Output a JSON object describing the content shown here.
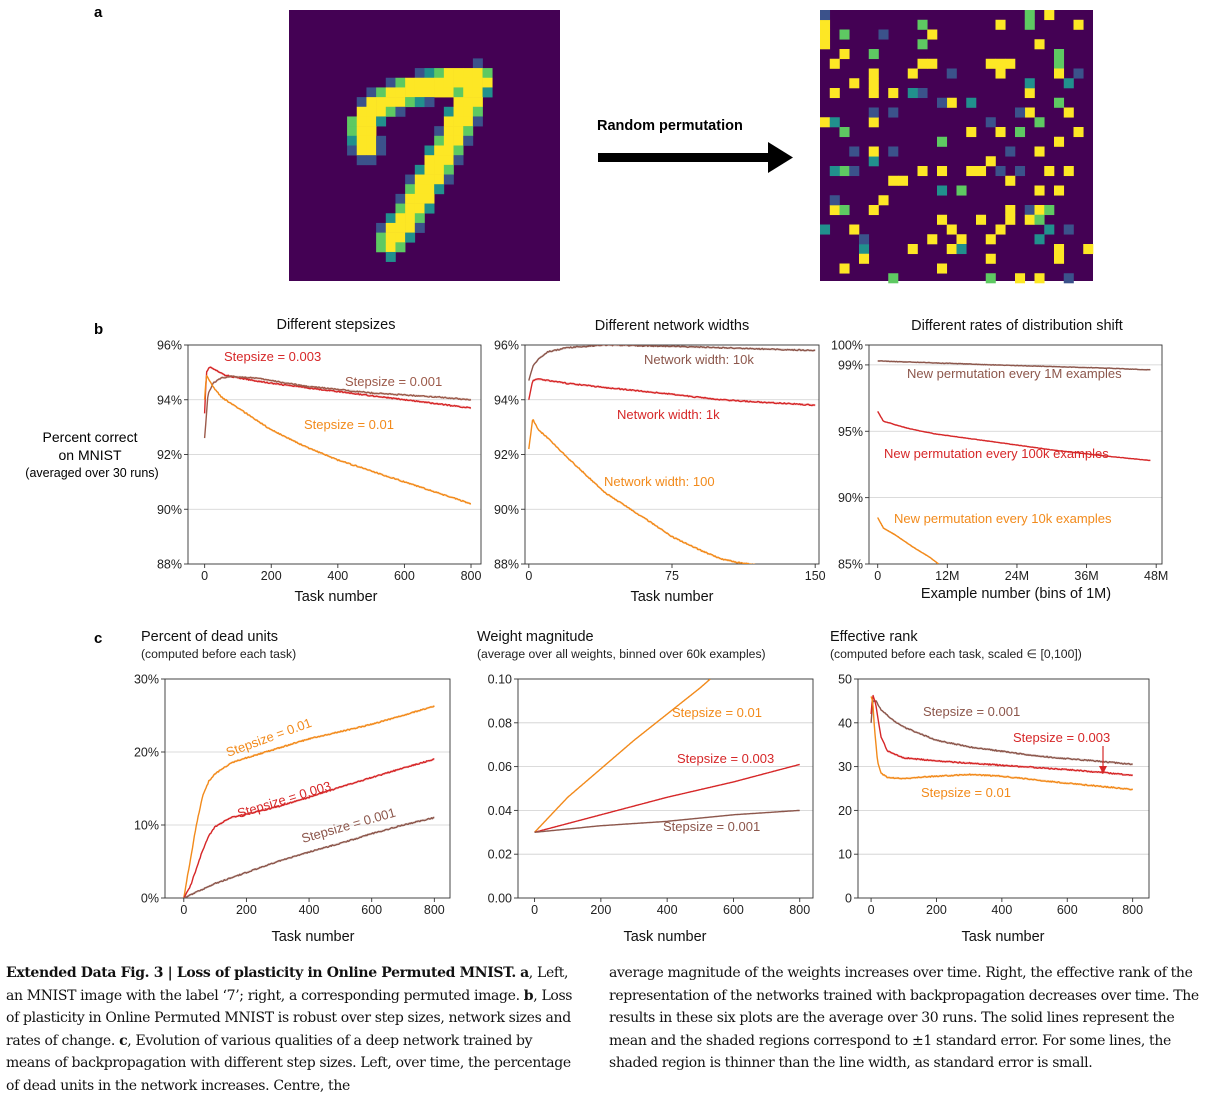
{
  "panel_labels": {
    "a": "a",
    "b": "b",
    "c": "c"
  },
  "panel_a": {
    "arrow_label": "Random permutation",
    "left_image": "mnist-digit-7",
    "right_image": "permuted-mnist-digit-7",
    "colors": {
      "background": "#440154",
      "low": "#3b528b",
      "mid": "#21908d",
      "high": "#5ec962",
      "top": "#fde725"
    }
  },
  "panel_b": {
    "y_label_lines": [
      "Percent correct",
      "on MNIST",
      "(averaged over 30 runs)"
    ]
  },
  "panel_c": {},
  "caption": {
    "heading": "Extended Data Fig. 3 | Loss of plasticity in Online Permuted MNIST.",
    "left_text": [
      {
        "bold": "a",
        "text": ", Left, an MNIST image with the label ‘7’; right, a corresponding permuted image. "
      },
      {
        "bold": "b",
        "text": ", Loss of plasticity in Online Permuted MNIST is robust over step sizes, network sizes and rates of change. "
      },
      {
        "bold": "c",
        "text": ", Evolution of various qualities of a deep network trained by means of backpropagation with different step sizes. Left, over time, the percentage of dead units in the network increases. Centre, the"
      }
    ],
    "right_text": "average magnitude of the weights increases over time. Right, the effective rank of the representation of the networks trained with backpropagation decreases over time. The results in these six plots are the average over 30 runs. The solid lines represent the mean and the shaded regions correspond to ±1 standard error. For some lines, the shaded region is thinner than the line width, as standard error is small."
  },
  "chart_data": [
    {
      "id": "b1",
      "type": "line",
      "title": "Different stepsizes",
      "xlabel": "Task number",
      "ylabel": "",
      "xlim": [
        -50,
        830
      ],
      "ylim": [
        88,
        96
      ],
      "xticks": [
        0,
        200,
        400,
        600,
        800
      ],
      "xtick_labels": [
        "0",
        "200",
        "400",
        "600",
        "800"
      ],
      "yticks": [
        88,
        90,
        92,
        94,
        96
      ],
      "ytick_labels": [
        "88%",
        "90%",
        "92%",
        "94%",
        "96%"
      ],
      "grid": "horizontal",
      "series": [
        {
          "name": "Stepsize = 0.003",
          "color": "#d62728",
          "x": [
            0,
            5,
            15,
            30,
            60,
            100,
            200,
            300,
            400,
            500,
            600,
            700,
            800
          ],
          "y": [
            93.5,
            95.0,
            95.2,
            95.1,
            94.9,
            94.8,
            94.6,
            94.45,
            94.3,
            94.15,
            94.0,
            93.85,
            93.7
          ]
        },
        {
          "name": "Stepsize = 0.001",
          "color": "#9c5a4a",
          "x": [
            0,
            10,
            25,
            50,
            80,
            150,
            300,
            500,
            700,
            800
          ],
          "y": [
            92.6,
            94.2,
            94.6,
            94.8,
            94.85,
            94.8,
            94.5,
            94.25,
            94.1,
            94.0
          ]
        },
        {
          "name": "Stepsize = 0.01",
          "color": "#f28a1b",
          "x": [
            0,
            5,
            15,
            30,
            50,
            100,
            200,
            300,
            400,
            500,
            600,
            700,
            800
          ],
          "y": [
            94.0,
            94.9,
            94.7,
            94.4,
            94.1,
            93.7,
            92.9,
            92.3,
            91.8,
            91.4,
            91.0,
            90.6,
            90.2
          ]
        }
      ],
      "annotations": [
        "Stepsize = 0.003",
        "Stepsize = 0.001",
        "Stepsize = 0.01"
      ]
    },
    {
      "id": "b2",
      "type": "line",
      "title": "Different network widths",
      "xlabel": "Task number",
      "ylabel": "",
      "xlim": [
        -2,
        152
      ],
      "ylim": [
        88,
        96
      ],
      "xticks": [
        0,
        75,
        150
      ],
      "xtick_labels": [
        "0",
        "75",
        "150"
      ],
      "yticks": [
        88,
        90,
        92,
        94,
        96
      ],
      "ytick_labels": [
        "88%",
        "90%",
        "92%",
        "94%",
        "96%"
      ],
      "grid": "horizontal",
      "series": [
        {
          "name": "Network width: 10k",
          "color": "#8c564b",
          "x": [
            0,
            2,
            5,
            10,
            20,
            40,
            75,
            100,
            150
          ],
          "y": [
            94.7,
            95.2,
            95.5,
            95.75,
            95.9,
            96.0,
            95.95,
            95.9,
            95.8
          ]
        },
        {
          "name": "Network width: 1k",
          "color": "#d62728",
          "x": [
            0,
            2,
            5,
            10,
            20,
            40,
            75,
            100,
            150
          ],
          "y": [
            94.0,
            94.7,
            94.75,
            94.7,
            94.6,
            94.45,
            94.2,
            94.0,
            93.8
          ]
        },
        {
          "name": "Network width: 100",
          "color": "#f28a1b",
          "x": [
            0,
            2,
            5,
            10,
            20,
            40,
            60,
            75,
            90,
            100,
            110,
            125
          ],
          "y": [
            92.2,
            93.3,
            92.9,
            92.6,
            91.9,
            90.6,
            89.7,
            89.0,
            88.5,
            88.2,
            88.05,
            87.9
          ]
        }
      ],
      "annotations": [
        "Network width: 10k",
        "Network width: 1k",
        "Network width: 100"
      ]
    },
    {
      "id": "b3",
      "type": "line",
      "title": "Different rates of distribution shift",
      "xlabel": "Example number (bins of 1M)",
      "ylabel": "",
      "xlim": [
        -1.5,
        49
      ],
      "ylim": [
        85,
        100
      ],
      "yscale": "compressed",
      "xticks": [
        0,
        12,
        24,
        36,
        48
      ],
      "xtick_labels": [
        "0",
        "12M",
        "24M",
        "36M",
        "48M"
      ],
      "yticks": [
        85,
        90,
        95,
        99,
        100
      ],
      "ytick_labels": [
        "85%",
        "90%",
        "95%",
        "99%",
        "100%"
      ],
      "grid": "horizontal",
      "series": [
        {
          "name": "New permutation every 1M examples",
          "color": "#8c564b",
          "x": [
            0,
            10,
            20,
            30,
            40,
            47
          ],
          "y": [
            99.2,
            99.1,
            99.0,
            98.9,
            98.8,
            98.7
          ]
        },
        {
          "name": "New permutation every 100k examples",
          "color": "#d62728",
          "x": [
            0,
            1,
            5,
            10,
            20,
            30,
            40,
            47
          ],
          "y": [
            96.2,
            95.6,
            95.2,
            94.8,
            94.2,
            93.6,
            93.1,
            92.8
          ]
        },
        {
          "name": "New permutation every 10k examples",
          "color": "#f28a1b",
          "x": [
            0,
            1,
            3,
            6,
            9,
            10.5
          ],
          "y": [
            88.5,
            87.7,
            87.2,
            86.3,
            85.5,
            85.0
          ]
        }
      ],
      "annotations": [
        "New permutation every 1M examples",
        "New permutation every 100k examples",
        "New permutation every 10k examples"
      ]
    },
    {
      "id": "c1",
      "type": "line",
      "title": "Percent of dead units",
      "subtitle": "(computed before each task)",
      "xlabel": "Task number",
      "ylabel": "",
      "xlim": [
        -60,
        850
      ],
      "ylim": [
        0,
        30
      ],
      "xticks": [
        0,
        200,
        400,
        600,
        800
      ],
      "xtick_labels": [
        "0",
        "200",
        "400",
        "600",
        "800"
      ],
      "yticks": [
        0,
        10,
        20,
        30
      ],
      "ytick_labels": [
        "0%",
        "10%",
        "20%",
        "30%"
      ],
      "grid": "horizontal",
      "series": [
        {
          "name": "Stepsize = 0.01",
          "color": "#f28a1b",
          "x": [
            0,
            20,
            40,
            60,
            80,
            100,
            150,
            200,
            300,
            400,
            500,
            600,
            700,
            800
          ],
          "y": [
            0,
            5,
            10,
            14,
            16,
            17,
            18.5,
            19.2,
            20.5,
            21.8,
            22.8,
            23.8,
            25.0,
            26.3
          ]
        },
        {
          "name": "Stepsize = 0.003",
          "color": "#d62728",
          "x": [
            0,
            20,
            40,
            60,
            80,
            100,
            150,
            200,
            300,
            400,
            500,
            600,
            700,
            800
          ],
          "y": [
            0,
            1.5,
            4,
            6.5,
            8.5,
            9.8,
            11.0,
            11.5,
            12.5,
            13.8,
            15.2,
            16.5,
            17.8,
            19.0
          ]
        },
        {
          "name": "Stepsize = 0.001",
          "color": "#8c564b",
          "x": [
            0,
            50,
            100,
            200,
            300,
            400,
            500,
            600,
            700,
            800
          ],
          "y": [
            0,
            1.0,
            2.0,
            3.5,
            5.0,
            6.3,
            7.5,
            8.8,
            10.0,
            11.0
          ]
        }
      ],
      "annotations": [
        "Stepsize = 0.01",
        "Stepsize = 0.003",
        "Stepsize = 0.001"
      ]
    },
    {
      "id": "c2",
      "type": "line",
      "title": "Weight magnitude",
      "subtitle": "(average over all weights, binned over 60k examples)",
      "xlabel": "Task number",
      "ylabel": "",
      "xlim": [
        -50,
        840
      ],
      "ylim": [
        0.0,
        0.1
      ],
      "xticks": [
        0,
        200,
        400,
        600,
        800
      ],
      "xtick_labels": [
        "0",
        "200",
        "400",
        "600",
        "800"
      ],
      "yticks": [
        0.0,
        0.02,
        0.04,
        0.06,
        0.08,
        0.1
      ],
      "ytick_labels": [
        "0.00",
        "0.02",
        "0.04",
        "0.06",
        "0.08",
        "0.10"
      ],
      "grid": "horizontal",
      "series": [
        {
          "name": "Stepsize = 0.01",
          "color": "#f28a1b",
          "x": [
            0,
            50,
            100,
            200,
            300,
            400,
            500,
            530
          ],
          "y": [
            0.03,
            0.038,
            0.046,
            0.059,
            0.072,
            0.084,
            0.096,
            0.1
          ]
        },
        {
          "name": "Stepsize = 0.003",
          "color": "#d62728",
          "x": [
            0,
            200,
            400,
            600,
            800
          ],
          "y": [
            0.03,
            0.038,
            0.046,
            0.053,
            0.061
          ]
        },
        {
          "name": "Stepsize = 0.001",
          "color": "#8c564b",
          "x": [
            0,
            200,
            400,
            600,
            800
          ],
          "y": [
            0.03,
            0.033,
            0.035,
            0.038,
            0.04
          ]
        }
      ],
      "annotations": [
        "Stepsize = 0.01",
        "Stepsize = 0.003",
        "Stepsize = 0.001"
      ]
    },
    {
      "id": "c3",
      "type": "line",
      "title": "Effective rank",
      "subtitle": "(computed before each task, scaled ∈ [0,100])",
      "xlabel": "Task number",
      "ylabel": "",
      "xlim": [
        -40,
        850
      ],
      "ylim": [
        0,
        50
      ],
      "xticks": [
        0,
        200,
        400,
        600,
        800
      ],
      "xtick_labels": [
        "0",
        "200",
        "400",
        "600",
        "800"
      ],
      "yticks": [
        0,
        10,
        20,
        30,
        40,
        50
      ],
      "ytick_labels": [
        "0",
        "10",
        "20",
        "30",
        "40",
        "50"
      ],
      "grid": "horizontal",
      "series": [
        {
          "name": "Stepsize = 0.001",
          "color": "#8c564b",
          "x": [
            0,
            5,
            15,
            30,
            60,
            100,
            200,
            300,
            400,
            500,
            600,
            700,
            800
          ],
          "y": [
            40,
            45,
            45,
            43,
            41,
            39,
            36,
            34.5,
            33.5,
            32.5,
            31.8,
            31.2,
            30.5
          ]
        },
        {
          "name": "Stepsize = 0.003",
          "color": "#d62728",
          "x": [
            0,
            5,
            15,
            30,
            50,
            100,
            200,
            300,
            400,
            500,
            600,
            700,
            800
          ],
          "y": [
            42,
            46.5,
            44,
            37,
            33.5,
            32,
            31.3,
            30.8,
            30.3,
            29.8,
            29.3,
            28.7,
            28.0
          ]
        },
        {
          "name": "Stepsize = 0.01",
          "color": "#f28a1b",
          "x": [
            0,
            5,
            10,
            20,
            30,
            50,
            100,
            200,
            300,
            400,
            500,
            600,
            700,
            800
          ],
          "y": [
            46,
            45,
            39,
            31,
            28.5,
            27.5,
            27.3,
            27.8,
            28.2,
            27.8,
            27.0,
            26.2,
            25.5,
            24.8
          ]
        }
      ],
      "annotations": [
        "Stepsize = 0.001",
        "Stepsize = 0.003",
        "Stepsize = 0.01"
      ]
    }
  ]
}
